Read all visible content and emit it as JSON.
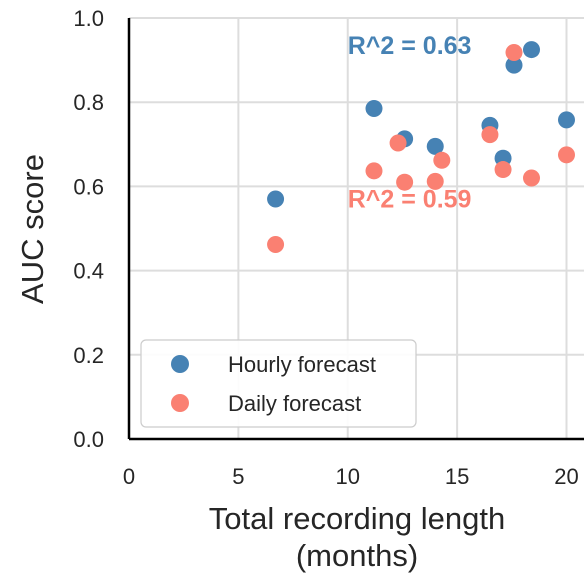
{
  "chart_data": {
    "type": "scatter",
    "xlabel": [
      "Total recording length",
      "(months)"
    ],
    "ylabel": "AUC score",
    "xlim": [
      0,
      20.8
    ],
    "ylim": [
      0,
      1.0
    ],
    "x_ticks": [
      0,
      5,
      10,
      15,
      20
    ],
    "y_ticks": [
      0.0,
      0.2,
      0.4,
      0.6,
      0.8,
      1.0
    ],
    "x_tick_labels": [
      "0",
      "5",
      "10",
      "15",
      "20"
    ],
    "y_tick_labels": [
      "0.0",
      "0.2",
      "0.4",
      "0.6",
      "0.8",
      "1.0"
    ],
    "grid": true,
    "legend_position": "lower-left",
    "series": [
      {
        "name": "Hourly forecast",
        "color": "#4682b4",
        "points": [
          {
            "x": 6.7,
            "y": 0.57
          },
          {
            "x": 11.2,
            "y": 0.785
          },
          {
            "x": 12.6,
            "y": 0.713
          },
          {
            "x": 14.0,
            "y": 0.695
          },
          {
            "x": 16.5,
            "y": 0.745
          },
          {
            "x": 17.1,
            "y": 0.667
          },
          {
            "x": 17.6,
            "y": 0.888
          },
          {
            "x": 18.4,
            "y": 0.925
          },
          {
            "x": 20.0,
            "y": 0.758
          }
        ]
      },
      {
        "name": "Daily forecast",
        "color": "#fa8072",
        "points": [
          {
            "x": 6.7,
            "y": 0.462
          },
          {
            "x": 11.2,
            "y": 0.637
          },
          {
            "x": 12.3,
            "y": 0.703
          },
          {
            "x": 12.6,
            "y": 0.61
          },
          {
            "x": 14.0,
            "y": 0.612
          },
          {
            "x": 14.3,
            "y": 0.662
          },
          {
            "x": 16.5,
            "y": 0.723
          },
          {
            "x": 17.1,
            "y": 0.64
          },
          {
            "x": 17.6,
            "y": 0.918
          },
          {
            "x": 18.4,
            "y": 0.62
          },
          {
            "x": 20.0,
            "y": 0.675
          }
        ]
      }
    ],
    "annotations": [
      {
        "text": "R^2 = 0.63",
        "color": "#4682b4",
        "x": 10.0,
        "y": 0.915
      },
      {
        "text": "R^2 = 0.59",
        "color": "#fa8072",
        "x": 10.0,
        "y": 0.55
      }
    ]
  }
}
